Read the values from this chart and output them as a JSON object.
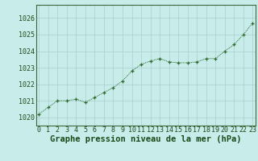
{
  "x": [
    0,
    1,
    2,
    3,
    4,
    5,
    6,
    7,
    8,
    9,
    10,
    11,
    12,
    13,
    14,
    15,
    16,
    17,
    18,
    19,
    20,
    21,
    22,
    23
  ],
  "y": [
    1020.2,
    1020.6,
    1021.0,
    1021.0,
    1021.1,
    1020.9,
    1021.2,
    1021.5,
    1021.8,
    1022.2,
    1022.8,
    1023.2,
    1023.4,
    1023.55,
    1023.35,
    1023.3,
    1023.3,
    1023.35,
    1023.55,
    1023.55,
    1024.0,
    1024.4,
    1025.0,
    1025.7
  ],
  "line_color": "#2d6a2d",
  "marker_color": "#2d6a2d",
  "bg_color": "#c8ecea",
  "grid_color": "#aacfcc",
  "xlabel": "Graphe pression niveau de la mer (hPa)",
  "xlabel_fontsize": 7.5,
  "tick_fontsize": 6,
  "ylim_min": 1019.5,
  "ylim_max": 1026.8,
  "yticks": [
    1020,
    1021,
    1022,
    1023,
    1024,
    1025,
    1026
  ],
  "xticks": [
    0,
    1,
    2,
    3,
    4,
    5,
    6,
    7,
    8,
    9,
    10,
    11,
    12,
    13,
    14,
    15,
    16,
    17,
    18,
    19,
    20,
    21,
    22,
    23
  ],
  "xlim_min": -0.3,
  "xlim_max": 23.3
}
